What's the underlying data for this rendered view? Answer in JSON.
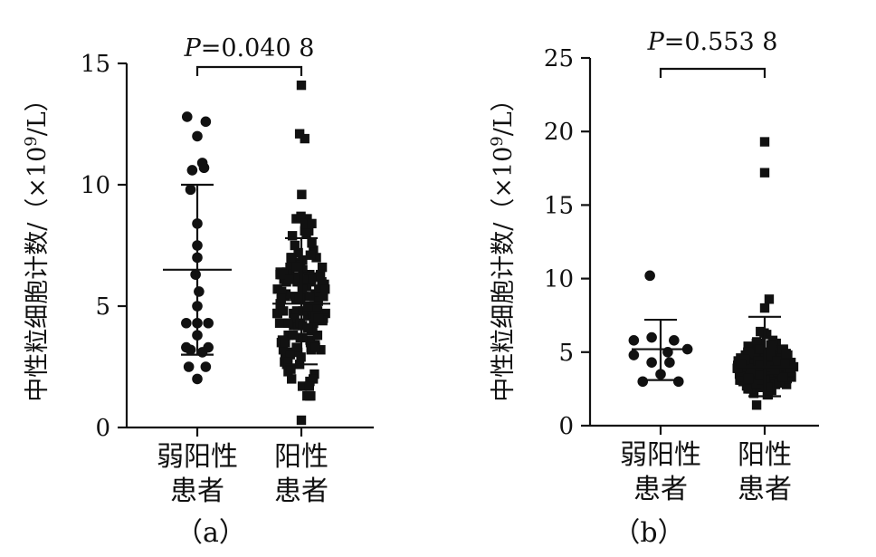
{
  "chart_data": [
    {
      "type": "scatter",
      "panel_label": "（a）",
      "ylabel": "中性粒细胞计数/（×10⁹/L）",
      "ylim": [
        0,
        15
      ],
      "yticks": [
        "0",
        "5",
        "10",
        "15"
      ],
      "categories": [
        "弱阳性\n患者",
        "阳性\n患者"
      ],
      "bracket_text": "P=0.040 8",
      "series": [
        {
          "marker": "circle",
          "mean": 6.5,
          "sd_low": 3.0,
          "sd_high": 10.0,
          "points": [
            [
              -0.12,
              12.8
            ],
            [
              0.1,
              12.6
            ],
            [
              0.0,
              12.0
            ],
            [
              -0.06,
              10.6
            ],
            [
              0.08,
              10.7
            ],
            [
              0.06,
              10.9
            ],
            [
              -0.08,
              9.8
            ],
            [
              0.0,
              8.4
            ],
            [
              0.0,
              7.5
            ],
            [
              0.0,
              7.0
            ],
            [
              -0.02,
              6.3
            ],
            [
              0.02,
              5.6
            ],
            [
              0.0,
              5.0
            ],
            [
              -0.13,
              4.3
            ],
            [
              0.0,
              4.3
            ],
            [
              0.13,
              4.3
            ],
            [
              0.0,
              3.8
            ],
            [
              -0.13,
              3.3
            ],
            [
              0.13,
              3.3
            ],
            [
              -0.08,
              3.2
            ],
            [
              0.06,
              3.1
            ],
            [
              -0.1,
              2.5
            ],
            [
              0.1,
              2.5
            ],
            [
              0.0,
              2.0
            ]
          ]
        },
        {
          "marker": "square",
          "mean": 5.1,
          "sd_low": 2.6,
          "sd_high": 7.8,
          "points": []
        }
      ]
    },
    {
      "type": "scatter",
      "panel_label": "（b）",
      "ylabel": "中性粒细胞计数/（×10⁹/L）",
      "ylim": [
        0,
        25
      ],
      "yticks": [
        "0",
        "5",
        "10",
        "15",
        "20",
        "25"
      ],
      "categories": [
        "弱阳性\n患者",
        "阳性\n患者"
      ],
      "bracket_text": "P=0.553 8",
      "series": [
        {
          "marker": "circle",
          "mean": 5.2,
          "sd_low": 3.1,
          "sd_high": 7.2,
          "points": [
            [
              -0.12,
              10.2
            ],
            [
              -0.3,
              5.8
            ],
            [
              -0.1,
              6.0
            ],
            [
              0.15,
              5.8
            ],
            [
              -0.3,
              4.8
            ],
            [
              0.08,
              5.0
            ],
            [
              0.3,
              5.2
            ],
            [
              -0.1,
              4.3
            ],
            [
              0.1,
              4.3
            ],
            [
              -0.2,
              3.0
            ],
            [
              0.2,
              3.0
            ],
            [
              0.0,
              3.5
            ]
          ]
        },
        {
          "marker": "square",
          "mean": 4.0,
          "sd_low": 2.0,
          "sd_high": 7.4,
          "points": []
        }
      ]
    }
  ]
}
